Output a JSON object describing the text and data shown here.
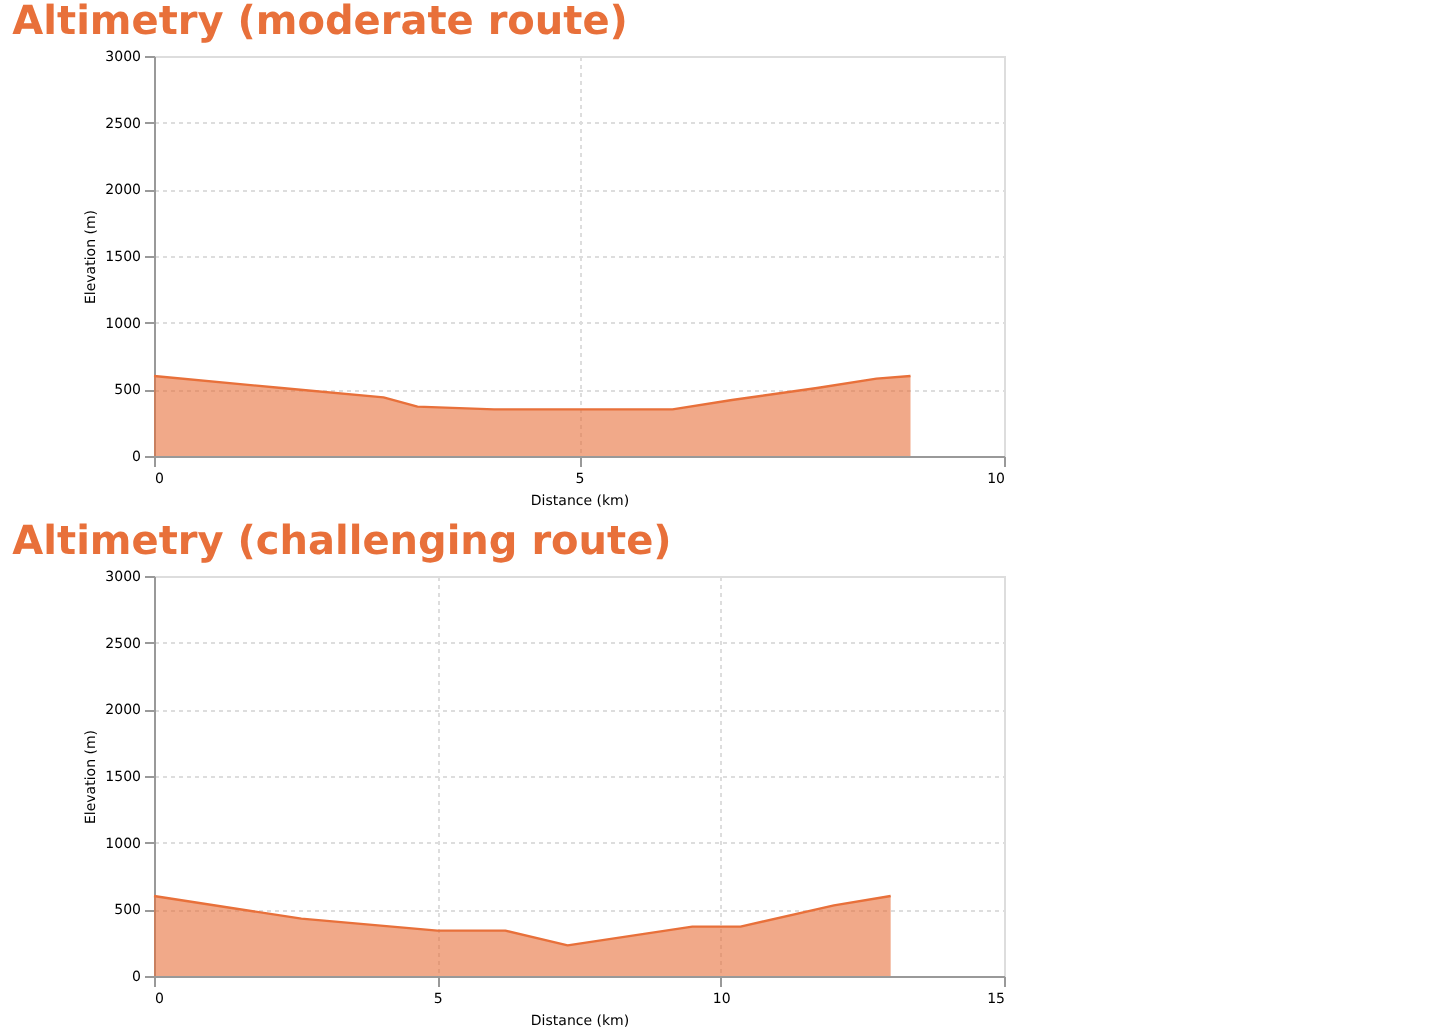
{
  "chart_data": [
    {
      "type": "area",
      "title": "Altimetry (moderate route)",
      "xlabel": "Distance (km)",
      "ylabel": "Elevation (m)",
      "x": [
        0,
        1.5,
        2.7,
        3.1,
        4,
        5,
        6.1,
        6.8,
        7.8,
        8.5,
        8.9
      ],
      "series": [
        {
          "color": "#e8703a",
          "values": [
            600,
            510,
            440,
            370,
            350,
            350,
            350,
            420,
            510,
            580,
            600
          ]
        }
      ],
      "xlim": [
        0,
        10
      ],
      "xticks": [
        0,
        5,
        10
      ],
      "ylim": [
        0,
        3000
      ],
      "yticks": [
        0,
        500,
        1000,
        1500,
        2000,
        2500,
        3000
      ],
      "grid": true
    },
    {
      "type": "area",
      "title": "Altimetry (challenging route)",
      "xlabel": "Distance (km)",
      "ylabel": "Elevation (m)",
      "x": [
        0,
        2.6,
        5,
        6.2,
        7.3,
        9.5,
        10.35,
        12,
        13
      ],
      "series": [
        {
          "color": "#e8703a",
          "values": [
            600,
            430,
            340,
            340,
            230,
            370,
            370,
            530,
            600
          ]
        }
      ],
      "xlim": [
        0,
        15
      ],
      "xticks": [
        0,
        5,
        10,
        15
      ],
      "ylim": [
        0,
        3000
      ],
      "yticks": [
        0,
        500,
        1000,
        1500,
        2000,
        2500,
        3000
      ],
      "grid": true
    }
  ]
}
